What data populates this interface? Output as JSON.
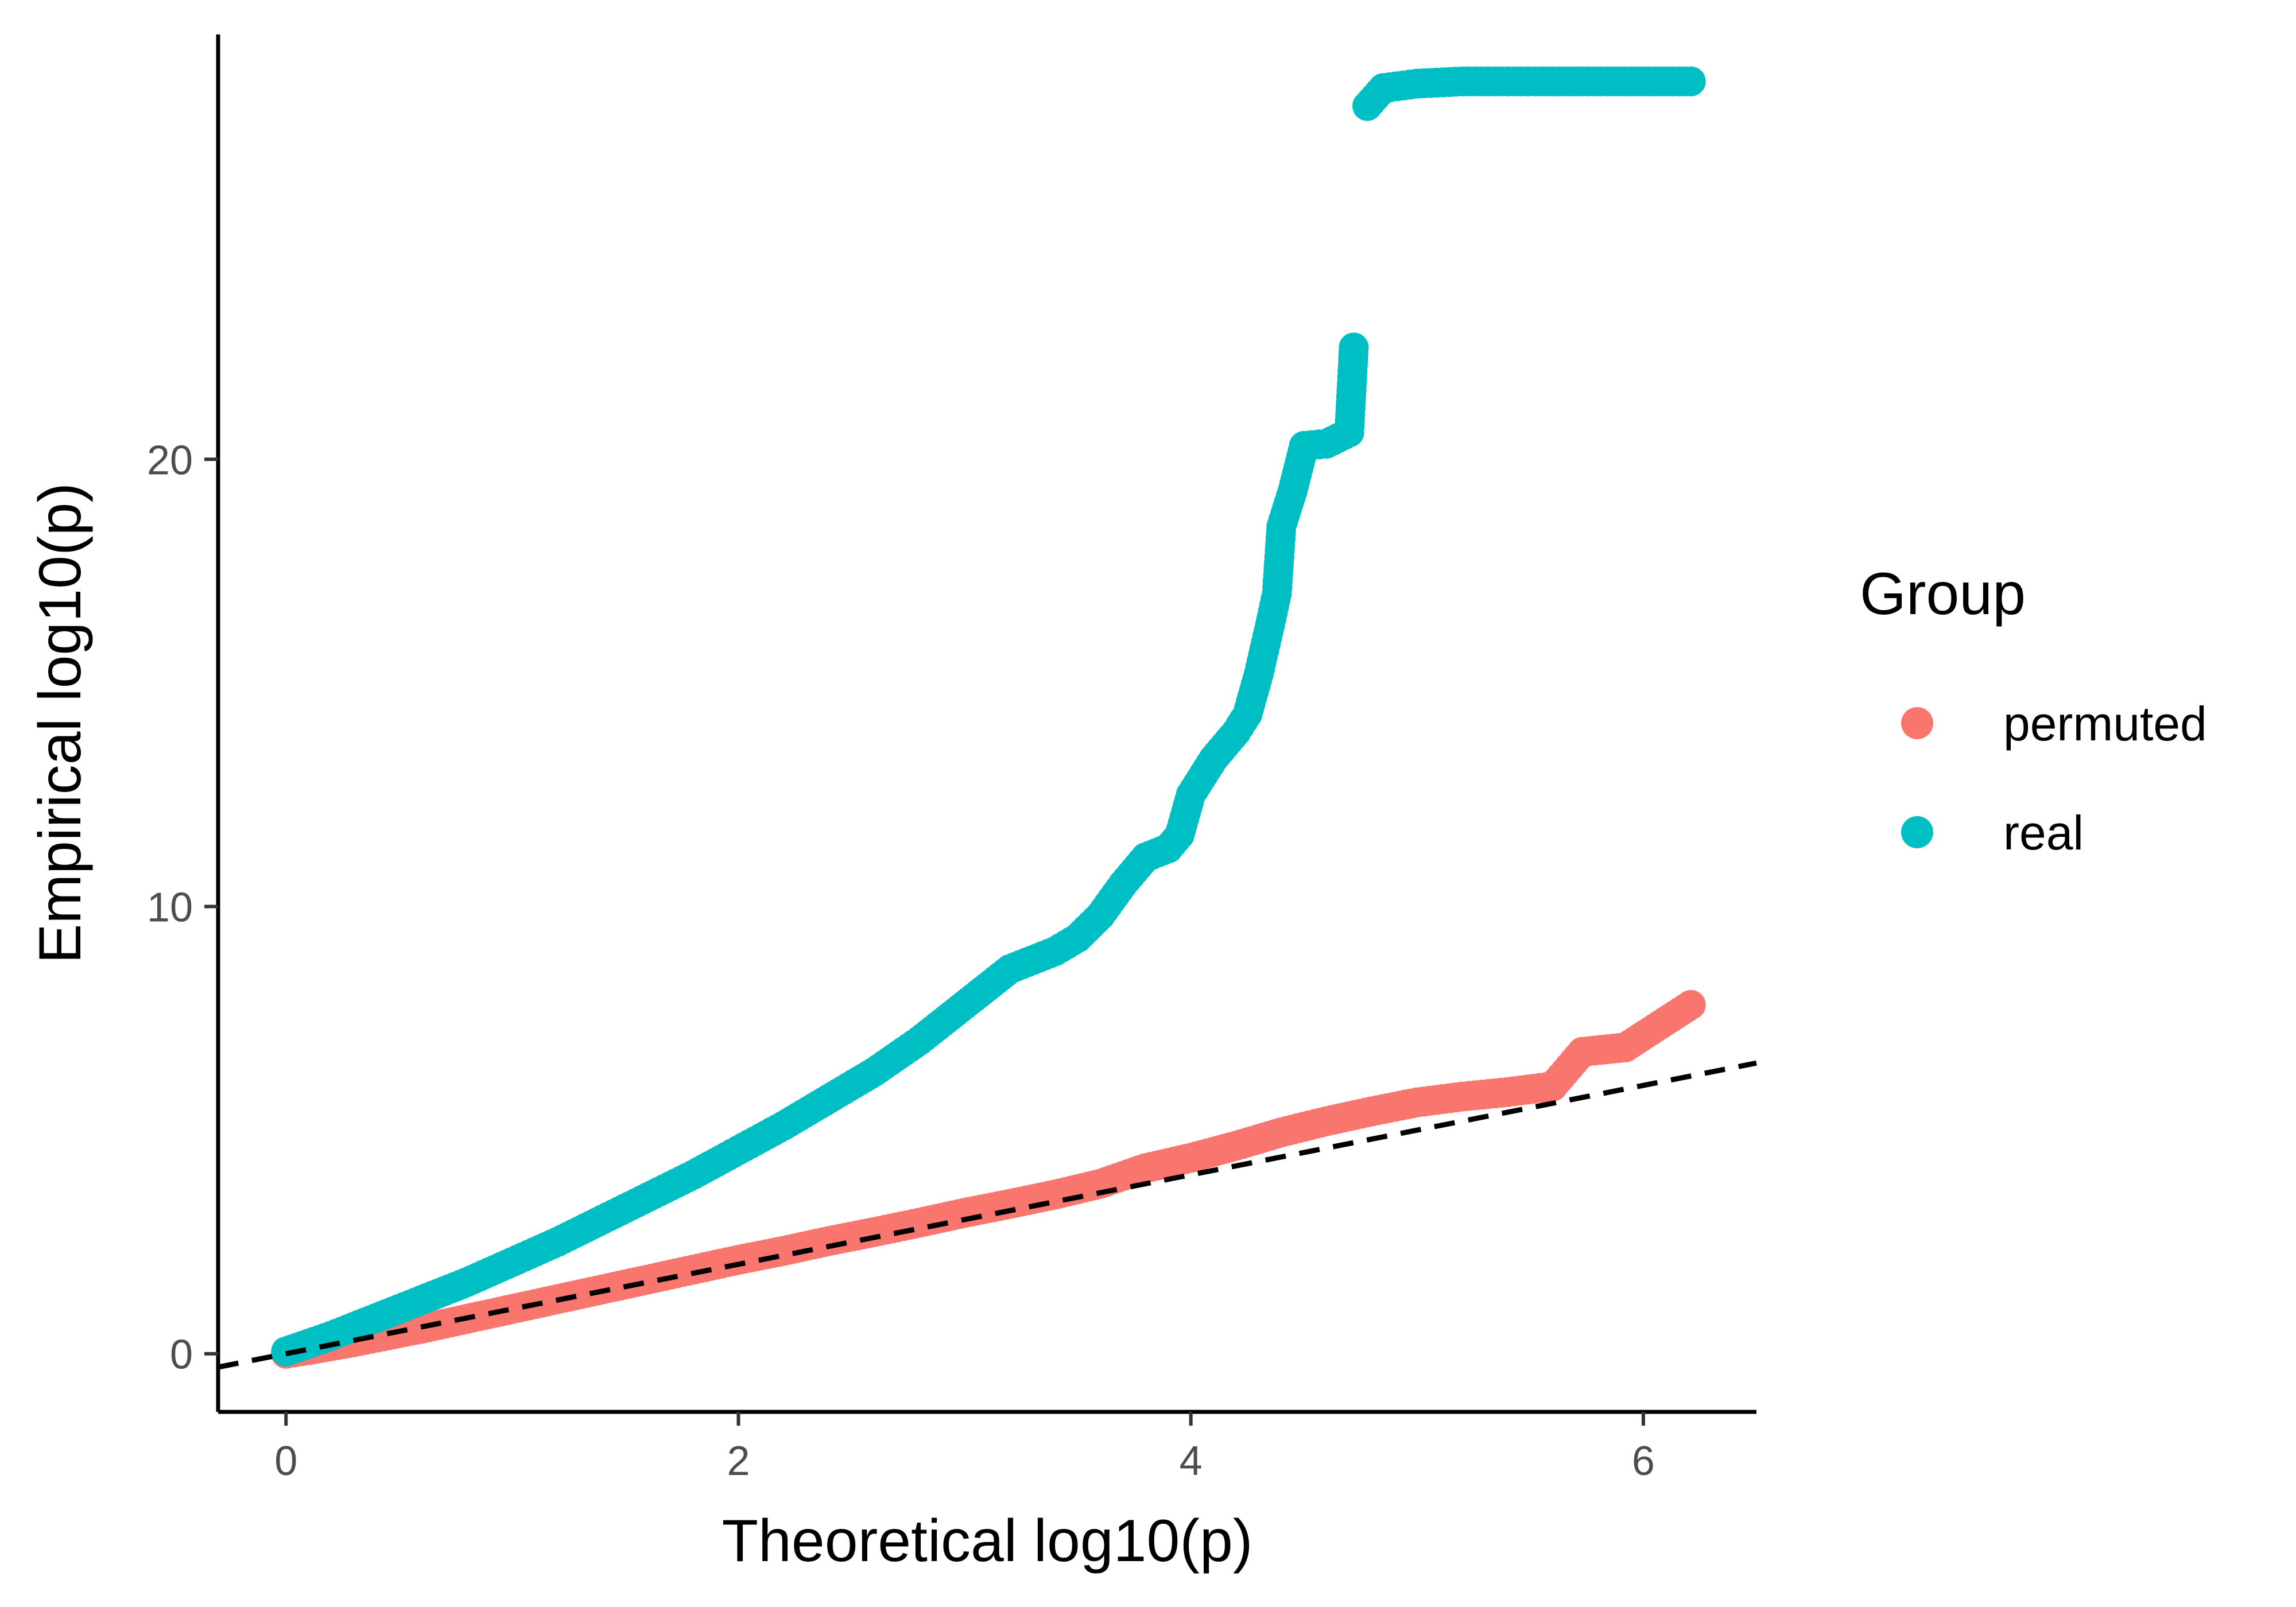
{
  "chart_data": {
    "type": "scatter",
    "title": "",
    "xlabel": "Theoretical log10(p)",
    "ylabel": "Empirical log10(p)",
    "xlim": [
      -0.3,
      6.5
    ],
    "ylim": [
      -1.3,
      29.5
    ],
    "xticks": [
      0,
      2,
      4,
      6
    ],
    "yticks": [
      0,
      10,
      20
    ],
    "grid": false,
    "legend": {
      "title": "Group",
      "placement": "right"
    },
    "reference_line": {
      "type": "identity",
      "slope": 1,
      "intercept": 0,
      "style": "dashed",
      "color": "#000000"
    },
    "series": [
      {
        "name": "permuted",
        "color": "#F8766D",
        "points": [
          [
            0,
            0
          ],
          [
            0.1,
            0.08
          ],
          [
            0.2,
            0.17
          ],
          [
            0.3,
            0.26
          ],
          [
            0.4,
            0.36
          ],
          [
            0.5,
            0.46
          ],
          [
            0.6,
            0.56
          ],
          [
            0.7,
            0.67
          ],
          [
            0.8,
            0.78
          ],
          [
            0.9,
            0.89
          ],
          [
            1.0,
            1.0
          ],
          [
            1.2,
            1.22
          ],
          [
            1.4,
            1.44
          ],
          [
            1.6,
            1.66
          ],
          [
            1.8,
            1.88
          ],
          [
            2.0,
            2.1
          ],
          [
            2.2,
            2.3
          ],
          [
            2.4,
            2.52
          ],
          [
            2.6,
            2.72
          ],
          [
            2.8,
            2.93
          ],
          [
            3.0,
            3.15
          ],
          [
            3.2,
            3.35
          ],
          [
            3.4,
            3.56
          ],
          [
            3.6,
            3.8
          ],
          [
            3.8,
            4.15
          ],
          [
            4.0,
            4.38
          ],
          [
            4.2,
            4.65
          ],
          [
            4.4,
            4.95
          ],
          [
            4.6,
            5.2
          ],
          [
            4.8,
            5.42
          ],
          [
            5.0,
            5.62
          ],
          [
            5.2,
            5.75
          ],
          [
            5.4,
            5.85
          ],
          [
            5.6,
            5.98
          ],
          [
            5.73,
            6.75
          ],
          [
            5.92,
            6.85
          ],
          [
            6.21,
            7.8
          ]
        ]
      },
      {
        "name": "real",
        "color": "#00BFC4",
        "points": [
          [
            0,
            0.05
          ],
          [
            0.2,
            0.4
          ],
          [
            0.4,
            0.8
          ],
          [
            0.6,
            1.2
          ],
          [
            0.8,
            1.6
          ],
          [
            1.0,
            2.05
          ],
          [
            1.2,
            2.5
          ],
          [
            1.4,
            3.0
          ],
          [
            1.6,
            3.5
          ],
          [
            1.8,
            4.0
          ],
          [
            2.0,
            4.55
          ],
          [
            2.2,
            5.1
          ],
          [
            2.4,
            5.7
          ],
          [
            2.6,
            6.3
          ],
          [
            2.8,
            7.0
          ],
          [
            3.0,
            7.8
          ],
          [
            3.1,
            8.2
          ],
          [
            3.2,
            8.6
          ],
          [
            3.4,
            9.0
          ],
          [
            3.5,
            9.3
          ],
          [
            3.6,
            9.8
          ],
          [
            3.7,
            10.5
          ],
          [
            3.8,
            11.1
          ],
          [
            3.9,
            11.3
          ],
          [
            3.95,
            11.6
          ],
          [
            4.0,
            12.5
          ],
          [
            4.1,
            13.3
          ],
          [
            4.2,
            13.9
          ],
          [
            4.25,
            14.3
          ],
          [
            4.3,
            15.2
          ],
          [
            4.35,
            16.3
          ],
          [
            4.38,
            17.0
          ],
          [
            4.4,
            18.5
          ],
          [
            4.45,
            19.3
          ],
          [
            4.5,
            20.3
          ],
          [
            4.6,
            20.35
          ],
          [
            4.7,
            20.6
          ],
          [
            4.72,
            22.5
          ],
          [
            4.78,
            27.9
          ],
          [
            4.85,
            28.3
          ],
          [
            5.0,
            28.4
          ],
          [
            5.2,
            28.45
          ],
          [
            5.4,
            28.45
          ],
          [
            5.55,
            28.45
          ],
          [
            5.73,
            28.45
          ],
          [
            5.92,
            28.45
          ],
          [
            6.21,
            28.45
          ]
        ]
      }
    ]
  }
}
